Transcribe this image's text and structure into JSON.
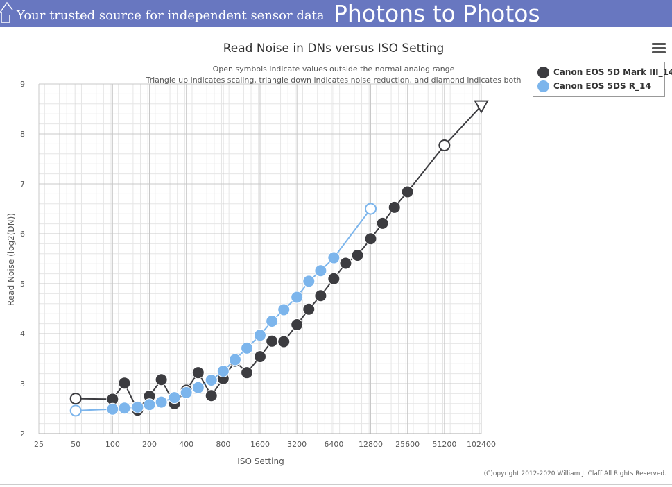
{
  "header": {
    "tagline": "Your trusted source for independent sensor data",
    "site_title": "Photons to Photos"
  },
  "menu": {
    "icon": "hamburger-menu-icon"
  },
  "copyright": "(C)opyright 2012-2020 William J. Claff All Rights Reserved.",
  "colors": {
    "banner": "#6877c0",
    "series_dark": "#3c3c40",
    "series_light": "#7cb5ec"
  },
  "chart_data": {
    "type": "line",
    "title": "Read Noise in DNs versus ISO Setting",
    "subtitle_lines": [
      "Open symbols indicate values outside the normal analog range",
      "Triangle up indicates scaling, triangle down indicates noise reduction, and diamond indicates both"
    ],
    "xlabel": "ISO Setting",
    "ylabel": "Read Noise (log2(DN))",
    "x_scale": "log2",
    "x_ticks": [
      25,
      50,
      100,
      200,
      400,
      800,
      1600,
      3200,
      6400,
      12800,
      25600,
      51200,
      102400
    ],
    "ylim": [
      2,
      9
    ],
    "y_ticks": [
      2,
      3,
      4,
      5,
      6,
      7,
      8,
      9
    ],
    "grid": true,
    "legend_position": "top-right",
    "series": [
      {
        "name": "Canon EOS 5D Mark III_14",
        "color": "#3c3c40",
        "points": [
          {
            "x": 50,
            "y": 2.7,
            "marker": "open-circle"
          },
          {
            "x": 100,
            "y": 2.69,
            "marker": "circle"
          },
          {
            "x": 125,
            "y": 3.01,
            "marker": "circle"
          },
          {
            "x": 160,
            "y": 2.47,
            "marker": "circle"
          },
          {
            "x": 200,
            "y": 2.75,
            "marker": "circle"
          },
          {
            "x": 250,
            "y": 3.08,
            "marker": "circle"
          },
          {
            "x": 320,
            "y": 2.6,
            "marker": "circle"
          },
          {
            "x": 400,
            "y": 2.87,
            "marker": "circle"
          },
          {
            "x": 500,
            "y": 3.22,
            "marker": "circle"
          },
          {
            "x": 640,
            "y": 2.76,
            "marker": "circle"
          },
          {
            "x": 800,
            "y": 3.1,
            "marker": "circle"
          },
          {
            "x": 1000,
            "y": 3.45,
            "marker": "circle"
          },
          {
            "x": 1250,
            "y": 3.22,
            "marker": "circle"
          },
          {
            "x": 1600,
            "y": 3.54,
            "marker": "circle"
          },
          {
            "x": 2000,
            "y": 3.85,
            "marker": "circle"
          },
          {
            "x": 2500,
            "y": 3.84,
            "marker": "circle"
          },
          {
            "x": 3200,
            "y": 4.18,
            "marker": "circle"
          },
          {
            "x": 4000,
            "y": 4.49,
            "marker": "circle"
          },
          {
            "x": 5000,
            "y": 4.76,
            "marker": "circle"
          },
          {
            "x": 6400,
            "y": 5.1,
            "marker": "circle"
          },
          {
            "x": 8000,
            "y": 5.41,
            "marker": "circle"
          },
          {
            "x": 10000,
            "y": 5.57,
            "marker": "circle"
          },
          {
            "x": 12800,
            "y": 5.9,
            "marker": "circle"
          },
          {
            "x": 16000,
            "y": 6.21,
            "marker": "circle"
          },
          {
            "x": 20000,
            "y": 6.53,
            "marker": "circle"
          },
          {
            "x": 25600,
            "y": 6.84,
            "marker": "circle"
          },
          {
            "x": 51200,
            "y": 7.77,
            "marker": "open-circle"
          },
          {
            "x": 102400,
            "y": 8.56,
            "marker": "open-triangle-down"
          }
        ]
      },
      {
        "name": "Canon EOS 5DS R_14",
        "color": "#7cb5ec",
        "points": [
          {
            "x": 50,
            "y": 2.46,
            "marker": "open-circle"
          },
          {
            "x": 100,
            "y": 2.49,
            "marker": "circle"
          },
          {
            "x": 125,
            "y": 2.51,
            "marker": "circle"
          },
          {
            "x": 160,
            "y": 2.53,
            "marker": "circle"
          },
          {
            "x": 200,
            "y": 2.58,
            "marker": "circle"
          },
          {
            "x": 250,
            "y": 2.63,
            "marker": "circle"
          },
          {
            "x": 320,
            "y": 2.72,
            "marker": "circle"
          },
          {
            "x": 400,
            "y": 2.82,
            "marker": "circle"
          },
          {
            "x": 500,
            "y": 2.92,
            "marker": "circle"
          },
          {
            "x": 640,
            "y": 3.07,
            "marker": "circle"
          },
          {
            "x": 800,
            "y": 3.25,
            "marker": "circle"
          },
          {
            "x": 1000,
            "y": 3.48,
            "marker": "circle"
          },
          {
            "x": 1250,
            "y": 3.71,
            "marker": "circle"
          },
          {
            "x": 1600,
            "y": 3.97,
            "marker": "circle"
          },
          {
            "x": 2000,
            "y": 4.25,
            "marker": "circle"
          },
          {
            "x": 2500,
            "y": 4.48,
            "marker": "circle"
          },
          {
            "x": 3200,
            "y": 4.73,
            "marker": "circle"
          },
          {
            "x": 4000,
            "y": 5.05,
            "marker": "circle"
          },
          {
            "x": 5000,
            "y": 5.26,
            "marker": "circle"
          },
          {
            "x": 6400,
            "y": 5.52,
            "marker": "circle"
          },
          {
            "x": 12800,
            "y": 6.5,
            "marker": "open-circle"
          }
        ]
      }
    ]
  }
}
